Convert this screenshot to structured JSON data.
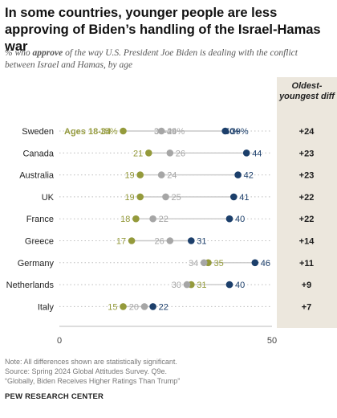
{
  "title": "In some countries, younger people are less approving of Biden’s handling of the Israel-Hamas war",
  "subtitle": {
    "pre": "% who ",
    "bold": "approve",
    "post": " of the way U.S. President Joe Biden is dealing with the conflict between Israel and Hamas, by age"
  },
  "diff_header": "Oldest-youngest diff",
  "colors": {
    "young": "#949a3b",
    "middle": "#a6a6a6",
    "old": "#1c3f6b",
    "diff_bg": "#ece7dd"
  },
  "notes": [
    "Note: All differences shown are statistically significant.",
    "Source: Spring 2024 Global Attitudes Survey. Q9e.",
    "“Globally, Biden Receives Higher Ratings Than Trump”"
  ],
  "org": "PEW RESEARCH CENTER",
  "chart_data": {
    "type": "scatter",
    "xlim": [
      0,
      50
    ],
    "x_ticks": [
      "0",
      "50"
    ],
    "legend": [
      "Ages 18-34",
      "35-49",
      "50+"
    ],
    "categories": [
      "Sweden",
      "Canada",
      "Australia",
      "UK",
      "France",
      "Greece",
      "Germany",
      "Netherlands",
      "Italy"
    ],
    "series": [
      {
        "name": "Ages 18-34",
        "values": [
          15,
          21,
          19,
          19,
          18,
          17,
          35,
          31,
          15
        ],
        "labels": [
          "15%",
          "21",
          "19",
          "19",
          "18",
          "17",
          "35",
          "31",
          "15"
        ]
      },
      {
        "name": "35-49",
        "values": [
          24,
          26,
          24,
          25,
          22,
          26,
          34,
          30,
          20
        ],
        "labels": [
          "24%",
          "26",
          "24",
          "25",
          "22",
          "26",
          "34",
          "30",
          "20"
        ]
      },
      {
        "name": "50+",
        "values": [
          39,
          44,
          42,
          41,
          40,
          31,
          46,
          40,
          22
        ],
        "labels": [
          "39%",
          "44",
          "42",
          "41",
          "40",
          "31",
          "46",
          "40",
          "22"
        ]
      }
    ],
    "diffs": [
      "+24",
      "+23",
      "+23",
      "+22",
      "+22",
      "+14",
      "+11",
      "+9",
      "+7"
    ]
  }
}
